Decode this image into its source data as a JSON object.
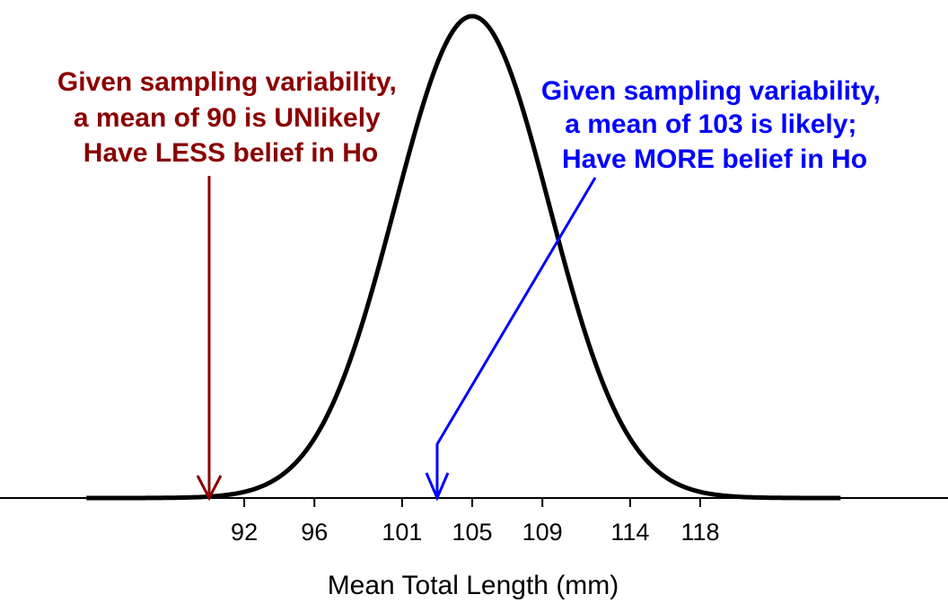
{
  "chart_data": {
    "type": "line",
    "xlabel": "Mean Total Length (mm)",
    "ylabel": "",
    "title": "",
    "distribution": {
      "kind": "normal",
      "mean": 105,
      "sd": 4.4
    },
    "xlim": [
      83,
      126
    ],
    "xticks": [
      92,
      96,
      101,
      105,
      109,
      114,
      118
    ],
    "grid": false,
    "legend": "none",
    "curve_color": "#000000",
    "annotations": [
      {
        "lines": [
          "Given sampling variability,",
          "a mean of 90 is UNlikely",
          "Have LESS belief in Ho"
        ],
        "color": "#8B0000",
        "arrow_to_x": 90
      },
      {
        "lines": [
          "Given sampling variability,",
          "a mean of 103 is likely;",
          "Have MORE belief in Ho"
        ],
        "color": "#0000FF",
        "arrow_to_x": 103
      }
    ]
  }
}
